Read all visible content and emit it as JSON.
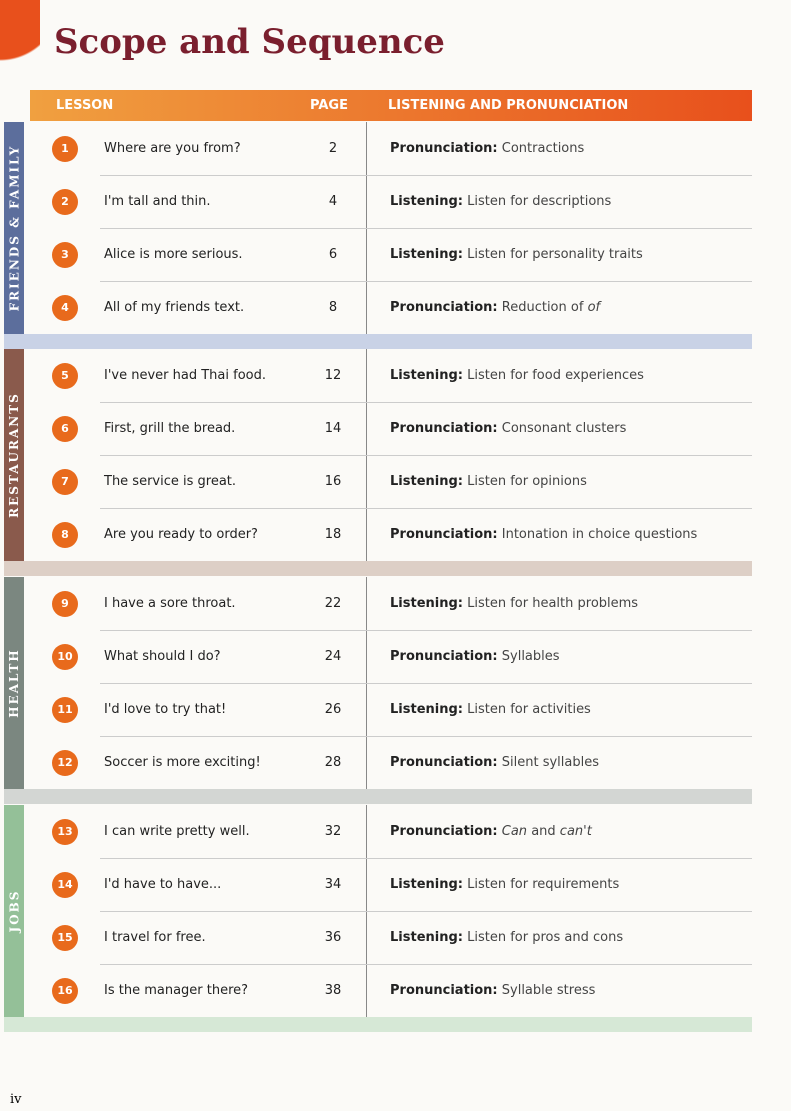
{
  "header": {
    "title": "Scope and Sequence"
  },
  "table": {
    "columns": [
      "LESSON",
      "PAGE",
      "LISTENING AND PRONUNCIATION"
    ],
    "units": [
      {
        "name": "FRIENDS & FAMILY",
        "color": "#5c6e9c",
        "band": "#c9d2e6",
        "lessons": [
          {
            "number": "1",
            "title": "Where are you from?",
            "page": 2,
            "label": "Pronunciation:",
            "detail": [
              {
                "text": "Contractions"
              }
            ]
          },
          {
            "number": "2",
            "title": "I'm tall and thin.",
            "page": 4,
            "label": "Listening:",
            "detail": [
              {
                "text": "Listen for descriptions"
              }
            ]
          },
          {
            "number": "3",
            "title": "Alice is more serious.",
            "page": 6,
            "label": "Listening:",
            "detail": [
              {
                "text": "Listen for personality traits"
              }
            ]
          },
          {
            "number": "4",
            "title": "All of my friends text.",
            "page": 8,
            "label": "Pronunciation:",
            "detail": [
              {
                "text": "Reduction of "
              },
              {
                "text": "of",
                "italic": true
              }
            ]
          }
        ]
      },
      {
        "name": "RESTAURANTS",
        "color": "#8a5a4c",
        "band": "#ddcfc6",
        "lessons": [
          {
            "number": "5",
            "title": "I've never had Thai food.",
            "page": 12,
            "label": "Listening:",
            "detail": [
              {
                "text": "Listen for food experiences"
              }
            ]
          },
          {
            "number": "6",
            "title": "First, grill the bread.",
            "page": 14,
            "label": "Pronunciation:",
            "detail": [
              {
                "text": "Consonant clusters"
              }
            ]
          },
          {
            "number": "7",
            "title": "The service is great.",
            "page": 16,
            "label": "Listening:",
            "detail": [
              {
                "text": "Listen for opinions"
              }
            ]
          },
          {
            "number": "8",
            "title": "Are you ready to order?",
            "page": 18,
            "label": "Pronunciation:",
            "detail": [
              {
                "text": "Intonation in choice questions"
              }
            ]
          }
        ]
      },
      {
        "name": "HEALTH",
        "color": "#7b8780",
        "band": "#d3d6d3",
        "lessons": [
          {
            "number": "9",
            "title": "I have a sore throat.",
            "page": 22,
            "label": "Listening:",
            "detail": [
              {
                "text": "Listen for health problems"
              }
            ]
          },
          {
            "number": "10",
            "title": "What should I do?",
            "page": 24,
            "label": "Pronunciation:",
            "detail": [
              {
                "text": "Syllables"
              }
            ]
          },
          {
            "number": "11",
            "title": "I'd love to try that!",
            "page": 26,
            "label": "Listening:",
            "detail": [
              {
                "text": "Listen for activities"
              }
            ]
          },
          {
            "number": "12",
            "title": "Soccer is more exciting!",
            "page": 28,
            "label": "Pronunciation:",
            "detail": [
              {
                "text": "Silent syllables"
              }
            ]
          }
        ]
      },
      {
        "name": "JOBS",
        "color": "#94c098",
        "band": "#d6e8d6",
        "lessons": [
          {
            "number": "13",
            "title": "I can write pretty well.",
            "page": 32,
            "label": "Pronunciation:",
            "detail": [
              {
                "text": "Can",
                "italic": true
              },
              {
                "text": " and "
              },
              {
                "text": "can't",
                "italic": true
              }
            ]
          },
          {
            "number": "14",
            "title": "I'd have to have...",
            "page": 34,
            "label": "Listening:",
            "detail": [
              {
                "text": "Listen for requirements"
              }
            ]
          },
          {
            "number": "15",
            "title": "I travel for free.",
            "page": 36,
            "label": "Listening:",
            "detail": [
              {
                "text": "Listen for pros and cons"
              }
            ]
          },
          {
            "number": "16",
            "title": "Is the manager there?",
            "page": 38,
            "label": "Pronunciation:",
            "detail": [
              {
                "text": "Syllable stress"
              }
            ]
          }
        ]
      }
    ]
  },
  "footer": {
    "page": "iv"
  }
}
